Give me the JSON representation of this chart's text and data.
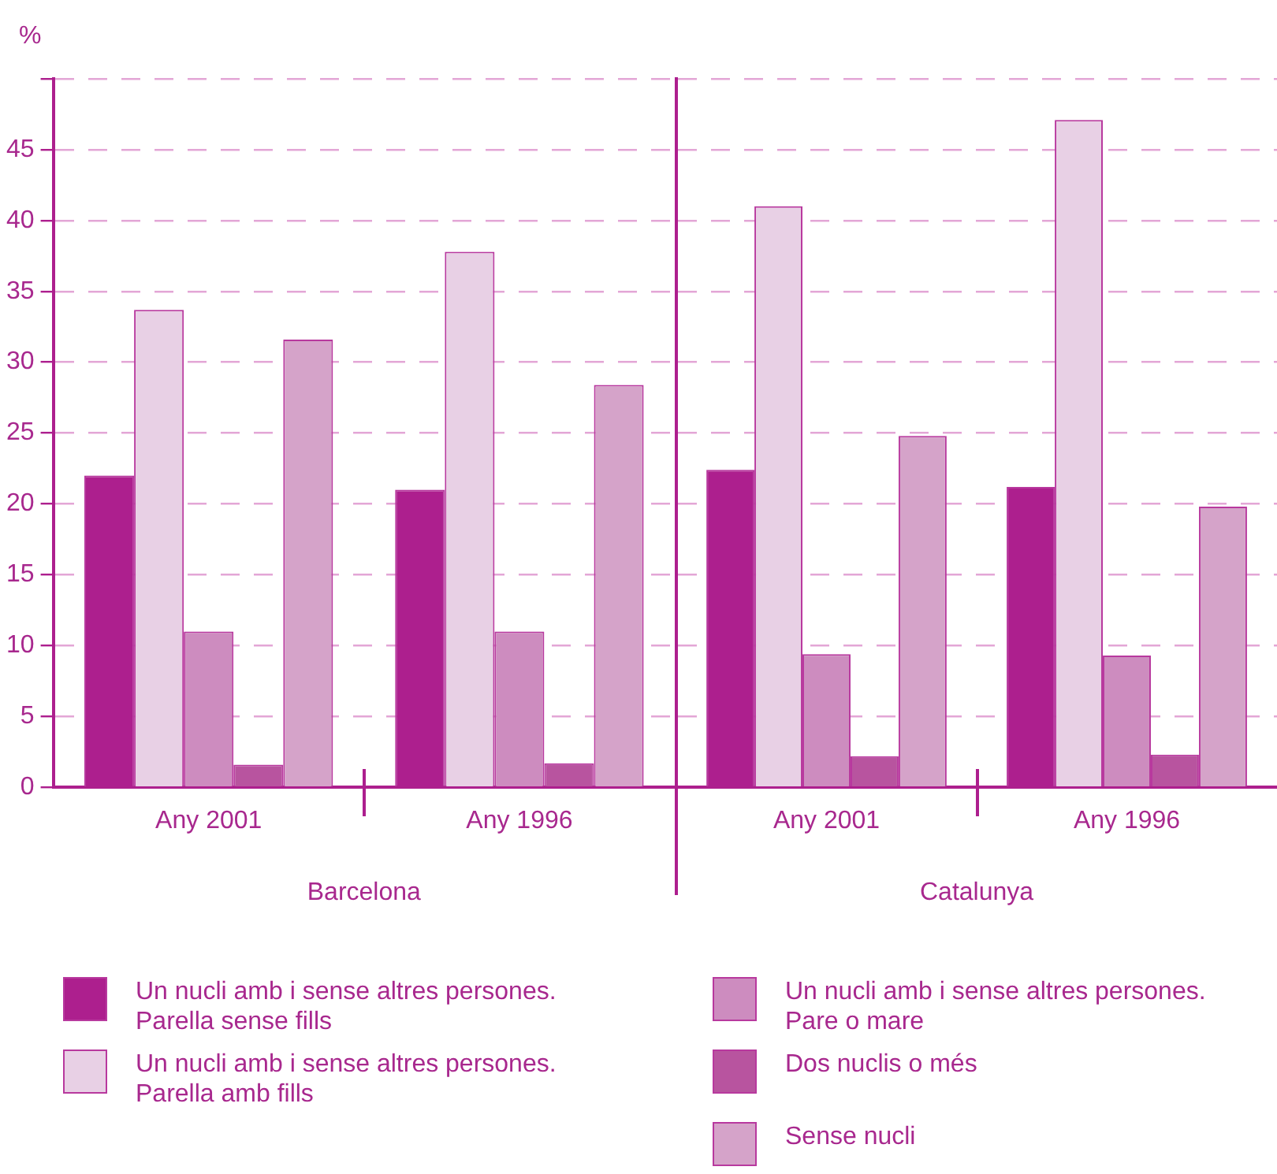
{
  "chart_data": [
    {
      "type": "bar",
      "ylabel": "%",
      "xlabel": "Barcelona",
      "categories": [
        "Any 2001",
        "Any 1996"
      ],
      "series": [
        {
          "name": "Un nucli amb i sense altres persones. Parella sense fills",
          "color": "#ad1f8e",
          "values": [
            22.0,
            21.0
          ]
        },
        {
          "name": "Un nucli amb i sense altres persones. Parella amb fills",
          "color": "#e8d0e5",
          "values": [
            33.7,
            37.8
          ]
        },
        {
          "name": "Un nucli amb i sense altres persones. Pare o mare",
          "color": "#cd8cbf",
          "values": [
            11.0,
            11.0
          ]
        },
        {
          "name": "Dos nuclis o més",
          "color": "#b8549f",
          "values": [
            1.6,
            1.7
          ]
        },
        {
          "name": "Sense nucli",
          "color": "#d5a3c9",
          "values": [
            31.6,
            28.4
          ]
        }
      ],
      "ylim": [
        0,
        50
      ],
      "yticks": [
        0,
        5,
        10,
        15,
        20,
        25,
        30,
        35,
        40,
        45,
        {
          "value": 50,
          "label": null
        }
      ],
      "grid": "y",
      "legend": "bottom"
    },
    {
      "type": "bar",
      "xlabel": "Catalunya",
      "categories": [
        "Any 2001",
        "Any 1996"
      ],
      "series": [
        {
          "color": "#ad1f8e",
          "values": [
            22.4,
            21.2
          ]
        },
        {
          "color": "#e8d0e5",
          "values": [
            41.0,
            47.1
          ]
        },
        {
          "color": "#cd8cbf",
          "values": [
            9.4,
            9.3
          ]
        },
        {
          "color": "#b8549f",
          "values": [
            2.2,
            2.3
          ]
        },
        {
          "color": "#d5a3c9",
          "values": [
            24.8,
            19.8
          ]
        }
      ],
      "ylim": [
        0,
        50
      ],
      "yticks": [
        0,
        5,
        10,
        15,
        20,
        25,
        30,
        35,
        40,
        45,
        {
          "value": 50,
          "label": null
        }
      ],
      "grid": "y",
      "tick_labels": "x"
    }
  ]
}
